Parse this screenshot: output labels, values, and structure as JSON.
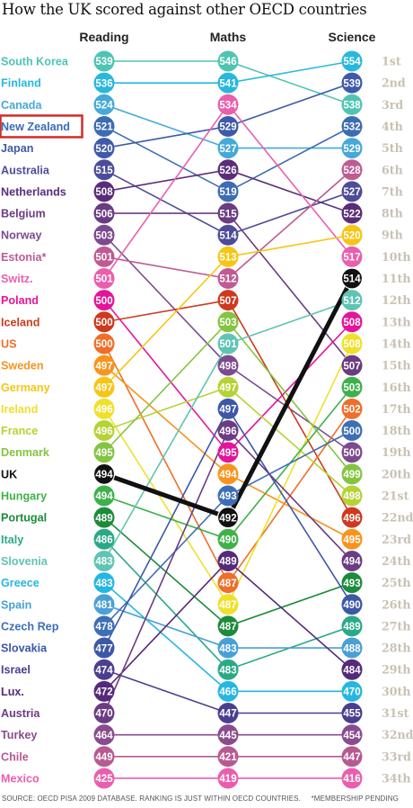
{
  "title": "How the UK scored against other OECD countries",
  "footer": {
    "source": "SOURCE: OECD PISA 2009 DATABASE. RANKING IS JUST WITHIN OECD COUNTRIES.",
    "note": "*MEMBERSHIP PENDING"
  },
  "chart_data": {
    "type": "slope",
    "columns": [
      "Reading",
      "Maths",
      "Science"
    ],
    "ranks": [
      "1st",
      "2nd",
      "3rd",
      "4th",
      "5th",
      "6th",
      "7th",
      "8th",
      "9th",
      "10th",
      "11th",
      "12th",
      "13th",
      "14th",
      "15th",
      "16th",
      "17th",
      "18th",
      "19th",
      "20th",
      "21st",
      "22nd",
      "23rd",
      "24th",
      "25th",
      "26th",
      "27th",
      "28th",
      "29th",
      "30th",
      "31st",
      "32nd",
      "33rd",
      "34th"
    ],
    "highlight_country": "UK",
    "boxed_country": "New Zealand",
    "countries": [
      {
        "name": "South Korea",
        "label": "South Korea",
        "color": "#4fc4b2",
        "reading": 539,
        "maths": 546,
        "science": 538,
        "r_rank": 1,
        "m_rank": 1,
        "s_rank": 3
      },
      {
        "name": "Finland",
        "label": "Finland",
        "color": "#29b8dc",
        "reading": 536,
        "maths": 541,
        "science": 554,
        "r_rank": 2,
        "m_rank": 2,
        "s_rank": 1
      },
      {
        "name": "Canada",
        "label": "Canada",
        "color": "#46a9d6",
        "reading": 524,
        "maths": 527,
        "science": 529,
        "r_rank": 3,
        "m_rank": 5,
        "s_rank": 5
      },
      {
        "name": "New Zealand",
        "label": "New Zealand",
        "color": "#3c6cb4",
        "reading": 521,
        "maths": 519,
        "science": 532,
        "r_rank": 4,
        "m_rank": 7,
        "s_rank": 4
      },
      {
        "name": "Japan",
        "label": "Japan",
        "color": "#3f5aa8",
        "reading": 520,
        "maths": 529,
        "science": 539,
        "r_rank": 5,
        "m_rank": 4,
        "s_rank": 2
      },
      {
        "name": "Australia",
        "label": "Australia",
        "color": "#4d4c99",
        "reading": 515,
        "maths": 514,
        "science": 527,
        "r_rank": 6,
        "m_rank": 9,
        "s_rank": 7
      },
      {
        "name": "Netherlands",
        "label": "Netherlands",
        "color": "#5b2d79",
        "reading": 508,
        "maths": 526,
        "science": 522,
        "r_rank": 7,
        "m_rank": 6,
        "s_rank": 8
      },
      {
        "name": "Belgium",
        "label": "Belgium",
        "color": "#6a3c82",
        "reading": 506,
        "maths": 515,
        "science": 507,
        "r_rank": 8,
        "m_rank": 8,
        "s_rank": 15
      },
      {
        "name": "Norway",
        "label": "Norway",
        "color": "#7c4b8e",
        "reading": 503,
        "maths": 498,
        "science": 500,
        "r_rank": 9,
        "m_rank": 15,
        "s_rank": 19
      },
      {
        "name": "Estonia",
        "label": "Estonia*",
        "color": "#bf5b93",
        "reading": 501,
        "maths": 512,
        "science": 528,
        "r_rank": 10,
        "m_rank": 11,
        "s_rank": 6
      },
      {
        "name": "Switzerland",
        "label": "Switz.",
        "color": "#ea5fad",
        "reading": 501,
        "maths": 534,
        "science": 517,
        "r_rank": 11,
        "m_rank": 3,
        "s_rank": 10
      },
      {
        "name": "Poland",
        "label": "Poland",
        "color": "#e4159a",
        "reading": 500,
        "maths": 495,
        "science": 508,
        "r_rank": 12,
        "m_rank": 19,
        "s_rank": 13
      },
      {
        "name": "Iceland",
        "label": "Iceland",
        "color": "#cd3a1f",
        "reading": 500,
        "maths": 507,
        "science": 496,
        "r_rank": 13,
        "m_rank": 12,
        "s_rank": 22
      },
      {
        "name": "US",
        "label": "US",
        "color": "#ee6f2a",
        "reading": 500,
        "maths": 487,
        "science": 502,
        "r_rank": 14,
        "m_rank": 25,
        "s_rank": 17
      },
      {
        "name": "Sweden",
        "label": "Sweden",
        "color": "#f7941d",
        "reading": 497,
        "maths": 494,
        "science": 495,
        "r_rank": 15,
        "m_rank": 20,
        "s_rank": 23
      },
      {
        "name": "Germany",
        "label": "Germany",
        "color": "#f7c515",
        "reading": 497,
        "maths": 513,
        "science": 520,
        "r_rank": 16,
        "m_rank": 10,
        "s_rank": 9
      },
      {
        "name": "Ireland",
        "label": "Ireland",
        "color": "#efe02c",
        "reading": 496,
        "maths": 487,
        "science": 508,
        "r_rank": 17,
        "m_rank": 26,
        "s_rank": 14
      },
      {
        "name": "France",
        "label": "France",
        "color": "#b5d334",
        "reading": 496,
        "maths": 497,
        "science": 498,
        "r_rank": 18,
        "m_rank": 16,
        "s_rank": 21
      },
      {
        "name": "Denmark",
        "label": "Denmark",
        "color": "#84c441",
        "reading": 495,
        "maths": 503,
        "science": 499,
        "r_rank": 19,
        "m_rank": 13,
        "s_rank": 20
      },
      {
        "name": "UK",
        "label": "UK",
        "color": "#111111",
        "reading": 494,
        "maths": 492,
        "science": 514,
        "r_rank": 20,
        "m_rank": 22,
        "s_rank": 11
      },
      {
        "name": "Hungary",
        "label": "Hungary",
        "color": "#3fb14b",
        "reading": 494,
        "maths": 490,
        "science": 503,
        "r_rank": 21,
        "m_rank": 23,
        "s_rank": 16
      },
      {
        "name": "Portugal",
        "label": "Portugal",
        "color": "#1c8b3c",
        "reading": 489,
        "maths": 487,
        "science": 493,
        "r_rank": 22,
        "m_rank": 27,
        "s_rank": 25
      },
      {
        "name": "Italy",
        "label": "Italy",
        "color": "#2aa987",
        "reading": 486,
        "maths": 483,
        "science": 489,
        "r_rank": 23,
        "m_rank": 29,
        "s_rank": 27
      },
      {
        "name": "Slovenia",
        "label": "Slovenia",
        "color": "#5fc4b3",
        "reading": 483,
        "maths": 501,
        "science": 512,
        "r_rank": 24,
        "m_rank": 14,
        "s_rank": 12
      },
      {
        "name": "Greece",
        "label": "Greece",
        "color": "#26b6e2",
        "reading": 483,
        "maths": 466,
        "science": 470,
        "r_rank": 25,
        "m_rank": 30,
        "s_rank": 30
      },
      {
        "name": "Spain",
        "label": "Spain",
        "color": "#4aa0d5",
        "reading": 481,
        "maths": 483,
        "science": 488,
        "r_rank": 26,
        "m_rank": 28,
        "s_rank": 28
      },
      {
        "name": "Czech Republic",
        "label": "Czech Rep",
        "color": "#3e6fb5",
        "reading": 478,
        "maths": 493,
        "science": 500,
        "r_rank": 27,
        "m_rank": 21,
        "s_rank": 18
      },
      {
        "name": "Slovakia",
        "label": "Slovakia",
        "color": "#3c58a6",
        "reading": 477,
        "maths": 497,
        "science": 490,
        "r_rank": 28,
        "m_rank": 17,
        "s_rank": 26
      },
      {
        "name": "Israel",
        "label": "Israel",
        "color": "#4a3f8f",
        "reading": 474,
        "maths": 447,
        "science": 455,
        "r_rank": 29,
        "m_rank": 31,
        "s_rank": 31
      },
      {
        "name": "Luxembourg",
        "label": "Lux.",
        "color": "#552a7a",
        "reading": 472,
        "maths": 489,
        "science": 484,
        "r_rank": 30,
        "m_rank": 24,
        "s_rank": 29
      },
      {
        "name": "Austria",
        "label": "Austria",
        "color": "#6b3c83",
        "reading": 470,
        "maths": 496,
        "science": 494,
        "r_rank": 31,
        "m_rank": 18,
        "s_rank": 24
      },
      {
        "name": "Turkey",
        "label": "Turkey",
        "color": "#8a4c8e",
        "reading": 464,
        "maths": 445,
        "science": 454,
        "r_rank": 32,
        "m_rank": 32,
        "s_rank": 32
      },
      {
        "name": "Chile",
        "label": "Chile",
        "color": "#b75a92",
        "reading": 449,
        "maths": 421,
        "science": 447,
        "r_rank": 33,
        "m_rank": 33,
        "s_rank": 33
      },
      {
        "name": "Mexico",
        "label": "Mexico",
        "color": "#ea5fad",
        "reading": 425,
        "maths": 419,
        "science": 416,
        "r_rank": 34,
        "m_rank": 34,
        "s_rank": 34
      }
    ]
  }
}
